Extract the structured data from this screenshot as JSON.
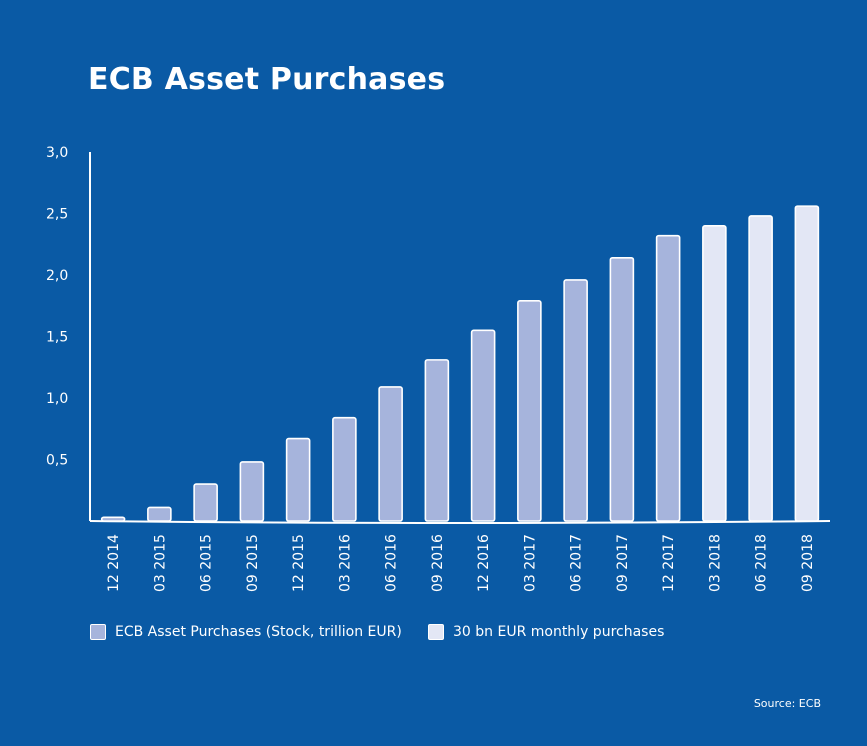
{
  "chart_data": {
    "type": "bar",
    "title": "ECB Asset Purchases",
    "categories": [
      "12 2014",
      "03 2015",
      "06 2015",
      "09 2015",
      "12 2015",
      "03 2016",
      "06 2016",
      "09 2016",
      "12 2016",
      "03 2017",
      "06 2017",
      "09 2017",
      "12 2017",
      "03 2018",
      "06 2018",
      "09 2018"
    ],
    "values": [
      0.03,
      0.11,
      0.3,
      0.48,
      0.67,
      0.84,
      1.09,
      1.31,
      1.55,
      1.79,
      1.96,
      2.14,
      2.32,
      2.4,
      2.48,
      2.56
    ],
    "series_index": [
      0,
      0,
      0,
      0,
      0,
      0,
      0,
      0,
      0,
      0,
      0,
      0,
      0,
      1,
      1,
      1
    ],
    "series": [
      {
        "name": "ECB Asset Purchases (Stock, trillion EUR)",
        "color": "#a6b4dc"
      },
      {
        "name": "30 bn EUR monthly purchases",
        "color": "#e3e7f5"
      }
    ],
    "yticks": [
      "0,5",
      "1,0",
      "1,5",
      "2,0",
      "2,5",
      "3,0"
    ],
    "ytick_values": [
      0.5,
      1.0,
      1.5,
      2.0,
      2.5,
      3.0
    ],
    "ylim": [
      0,
      3.0
    ],
    "xlabel": "",
    "ylabel": "",
    "legend_position": "bottom"
  },
  "source": "Source: ECB",
  "colors": {
    "background": "#0a5aa5",
    "axis": "#ffffff"
  }
}
